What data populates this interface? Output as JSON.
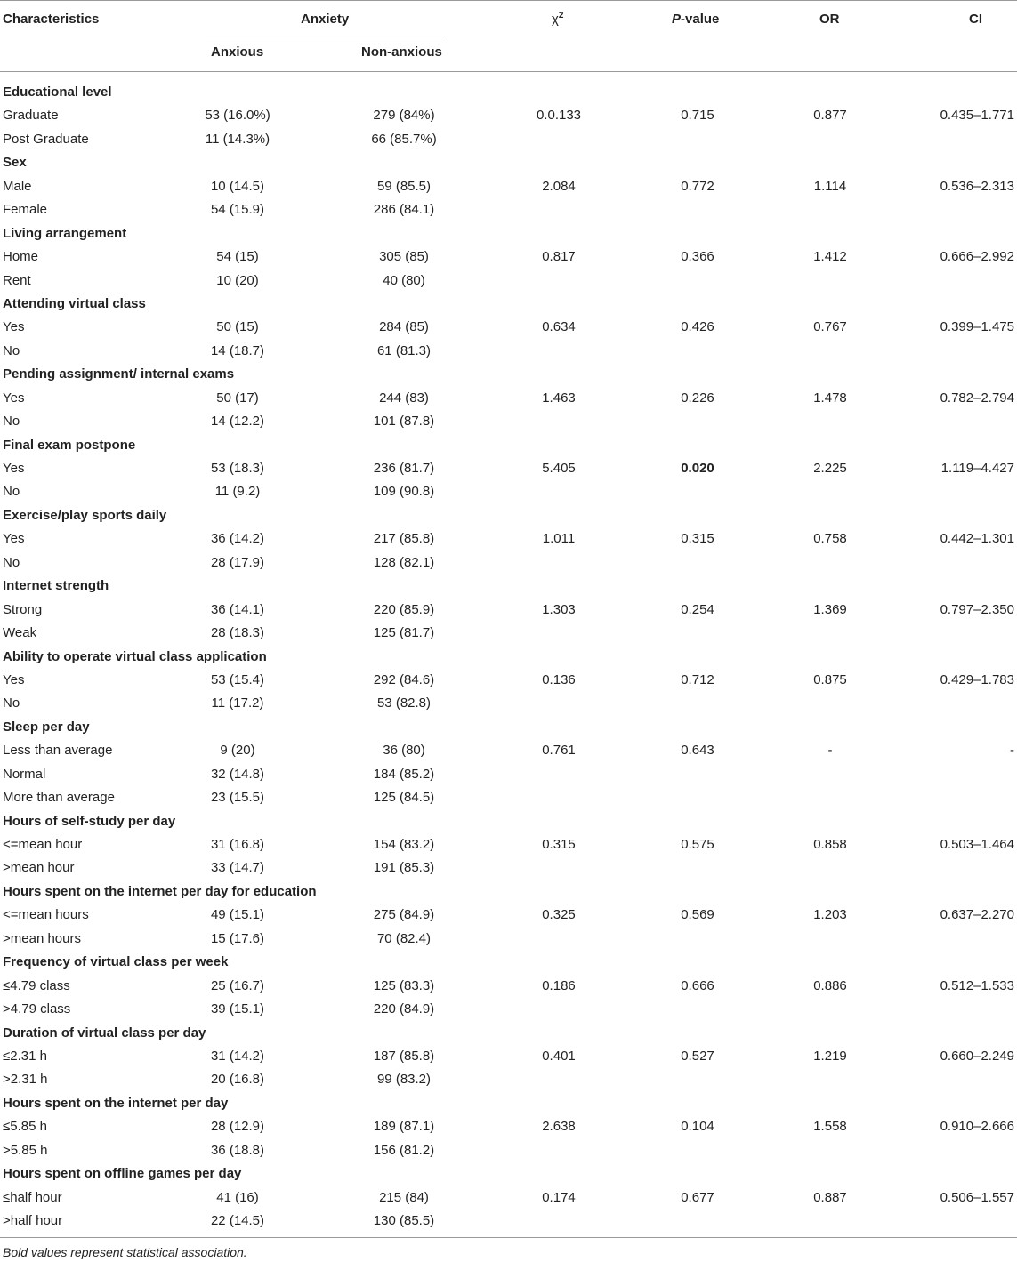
{
  "header": {
    "characteristics": "Characteristics",
    "anxiety": "Anxiety",
    "anxious": "Anxious",
    "non_anxious": "Non-anxious",
    "chi_sym": "χ",
    "chi_exp": "2",
    "p_italic": "P",
    "p_rest": "-value",
    "or": "OR",
    "ci": "CI"
  },
  "groups": [
    {
      "title": "Educational level",
      "rows": [
        {
          "label": "Graduate",
          "anxious": "53 (16.0%)",
          "non_anxious": "279 (84%)",
          "chi2": "0.0.133",
          "p": "0.715",
          "or": "0.877",
          "ci": "0.435–1.771"
        },
        {
          "label": "Post Graduate",
          "anxious": "11 (14.3%)",
          "non_anxious": "66 (85.7%)",
          "chi2": "",
          "p": "",
          "or": "",
          "ci": ""
        }
      ]
    },
    {
      "title": "Sex",
      "rows": [
        {
          "label": "Male",
          "anxious": "10 (14.5)",
          "non_anxious": "59 (85.5)",
          "chi2": "2.084",
          "p": "0.772",
          "or": "1.114",
          "ci": "0.536–2.313"
        },
        {
          "label": "Female",
          "anxious": "54 (15.9)",
          "non_anxious": "286 (84.1)",
          "chi2": "",
          "p": "",
          "or": "",
          "ci": ""
        }
      ]
    },
    {
      "title": "Living arrangement",
      "rows": [
        {
          "label": "Home",
          "anxious": "54 (15)",
          "non_anxious": "305 (85)",
          "chi2": "0.817",
          "p": "0.366",
          "or": "1.412",
          "ci": "0.666–2.992"
        },
        {
          "label": "Rent",
          "anxious": "10 (20)",
          "non_anxious": "40 (80)",
          "chi2": "",
          "p": "",
          "or": "",
          "ci": ""
        }
      ]
    },
    {
      "title": "Attending virtual class",
      "rows": [
        {
          "label": "Yes",
          "anxious": "50 (15)",
          "non_anxious": "284 (85)",
          "chi2": "0.634",
          "p": "0.426",
          "or": "0.767",
          "ci": "0.399–1.475"
        },
        {
          "label": "No",
          "anxious": "14 (18.7)",
          "non_anxious": "61 (81.3)",
          "chi2": "",
          "p": "",
          "or": "",
          "ci": ""
        }
      ]
    },
    {
      "title": "Pending assignment/ internal exams",
      "rows": [
        {
          "label": "Yes",
          "anxious": "50 (17)",
          "non_anxious": "244 (83)",
          "chi2": "1.463",
          "p": "0.226",
          "or": "1.478",
          "ci": "0.782–2.794"
        },
        {
          "label": "No",
          "anxious": "14 (12.2)",
          "non_anxious": "101 (87.8)",
          "chi2": "",
          "p": "",
          "or": "",
          "ci": ""
        }
      ]
    },
    {
      "title": "Final exam postpone",
      "rows": [
        {
          "label": "Yes",
          "anxious": "53 (18.3)",
          "non_anxious": "236 (81.7)",
          "chi2": "5.405",
          "p": "0.020",
          "p_bold": true,
          "or": "2.225",
          "ci": "1.119–4.427"
        },
        {
          "label": "No",
          "anxious": "11 (9.2)",
          "non_anxious": "109 (90.8)",
          "chi2": "",
          "p": "",
          "or": "",
          "ci": ""
        }
      ]
    },
    {
      "title": "Exercise/play sports daily",
      "rows": [
        {
          "label": "Yes",
          "anxious": "36 (14.2)",
          "non_anxious": "217 (85.8)",
          "chi2": "1.011",
          "p": "0.315",
          "or": "0.758",
          "ci": "0.442–1.301"
        },
        {
          "label": "No",
          "anxious": "28 (17.9)",
          "non_anxious": "128 (82.1)",
          "chi2": "",
          "p": "",
          "or": "",
          "ci": ""
        }
      ]
    },
    {
      "title": "Internet strength",
      "rows": [
        {
          "label": "Strong",
          "anxious": "36 (14.1)",
          "non_anxious": "220 (85.9)",
          "chi2": "1.303",
          "p": "0.254",
          "or": "1.369",
          "ci": "0.797–2.350"
        },
        {
          "label": "Weak",
          "anxious": "28 (18.3)",
          "non_anxious": "125 (81.7)",
          "chi2": "",
          "p": "",
          "or": "",
          "ci": ""
        }
      ]
    },
    {
      "title": "Ability to operate virtual class application",
      "rows": [
        {
          "label": "Yes",
          "anxious": "53 (15.4)",
          "non_anxious": "292 (84.6)",
          "chi2": "0.136",
          "p": "0.712",
          "or": "0.875",
          "ci": "0.429–1.783"
        },
        {
          "label": "No",
          "anxious": "11 (17.2)",
          "non_anxious": "53 (82.8)",
          "chi2": "",
          "p": "",
          "or": "",
          "ci": ""
        }
      ]
    },
    {
      "title": "Sleep per day",
      "rows": [
        {
          "label": "Less than average",
          "anxious": "9 (20)",
          "non_anxious": "36 (80)",
          "chi2": "0.761",
          "p": "0.643",
          "or": "-",
          "ci": "-"
        },
        {
          "label": "Normal",
          "anxious": "32 (14.8)",
          "non_anxious": "184 (85.2)",
          "chi2": "",
          "p": "",
          "or": "",
          "ci": ""
        },
        {
          "label": "More than average",
          "anxious": "23 (15.5)",
          "non_anxious": "125 (84.5)",
          "chi2": "",
          "p": "",
          "or": "",
          "ci": ""
        }
      ]
    },
    {
      "title": "Hours of self-study per day",
      "rows": [
        {
          "label": "<=mean hour",
          "anxious": "31 (16.8)",
          "non_anxious": "154 (83.2)",
          "chi2": "0.315",
          "p": "0.575",
          "or": "0.858",
          "ci": "0.503–1.464"
        },
        {
          "label": ">mean hour",
          "anxious": "33 (14.7)",
          "non_anxious": "191 (85.3)",
          "chi2": "",
          "p": "",
          "or": "",
          "ci": ""
        }
      ]
    },
    {
      "title": "Hours spent on the internet per day for education",
      "rows": [
        {
          "label": "<=mean hours",
          "anxious": "49 (15.1)",
          "non_anxious": "275 (84.9)",
          "chi2": "0.325",
          "p": "0.569",
          "or": "1.203",
          "ci": "0.637–2.270"
        },
        {
          "label": ">mean hours",
          "anxious": "15 (17.6)",
          "non_anxious": "70 (82.4)",
          "chi2": "",
          "p": "",
          "or": "",
          "ci": ""
        }
      ]
    },
    {
      "title": "Frequency of virtual class per week",
      "rows": [
        {
          "label": "≤4.79 class",
          "anxious": "25 (16.7)",
          "non_anxious": "125 (83.3)",
          "chi2": "0.186",
          "p": "0.666",
          "or": "0.886",
          "ci": "0.512–1.533"
        },
        {
          "label": ">4.79 class",
          "anxious": "39 (15.1)",
          "non_anxious": "220 (84.9)",
          "chi2": "",
          "p": "",
          "or": "",
          "ci": ""
        }
      ]
    },
    {
      "title": "Duration of virtual class per day",
      "rows": [
        {
          "label": "≤2.31 h",
          "anxious": "31 (14.2)",
          "non_anxious": "187 (85.8)",
          "chi2": "0.401",
          "p": "0.527",
          "or": "1.219",
          "ci": "0.660–2.249"
        },
        {
          "label": ">2.31 h",
          "anxious": "20 (16.8)",
          "non_anxious": "99 (83.2)",
          "chi2": "",
          "p": "",
          "or": "",
          "ci": ""
        }
      ]
    },
    {
      "title": "Hours spent on the internet per day",
      "rows": [
        {
          "label": "≤5.85 h",
          "anxious": "28 (12.9)",
          "non_anxious": "189 (87.1)",
          "chi2": "2.638",
          "p": "0.104",
          "or": "1.558",
          "ci": "0.910–2.666"
        },
        {
          "label": ">5.85 h",
          "anxious": "36 (18.8)",
          "non_anxious": "156 (81.2)",
          "chi2": "",
          "p": "",
          "or": "",
          "ci": ""
        }
      ]
    },
    {
      "title": "Hours spent on offline games per day",
      "rows": [
        {
          "label": "≤half hour",
          "anxious": "41 (16)",
          "non_anxious": "215 (84)",
          "chi2": "0.174",
          "p": "0.677",
          "or": "0.887",
          "ci": "0.506–1.557"
        },
        {
          "label": ">half hour",
          "anxious": "22 (14.5)",
          "non_anxious": "130 (85.5)",
          "chi2": "",
          "p": "",
          "or": "",
          "ci": ""
        }
      ]
    }
  ],
  "footnote": "Bold values represent statistical association."
}
